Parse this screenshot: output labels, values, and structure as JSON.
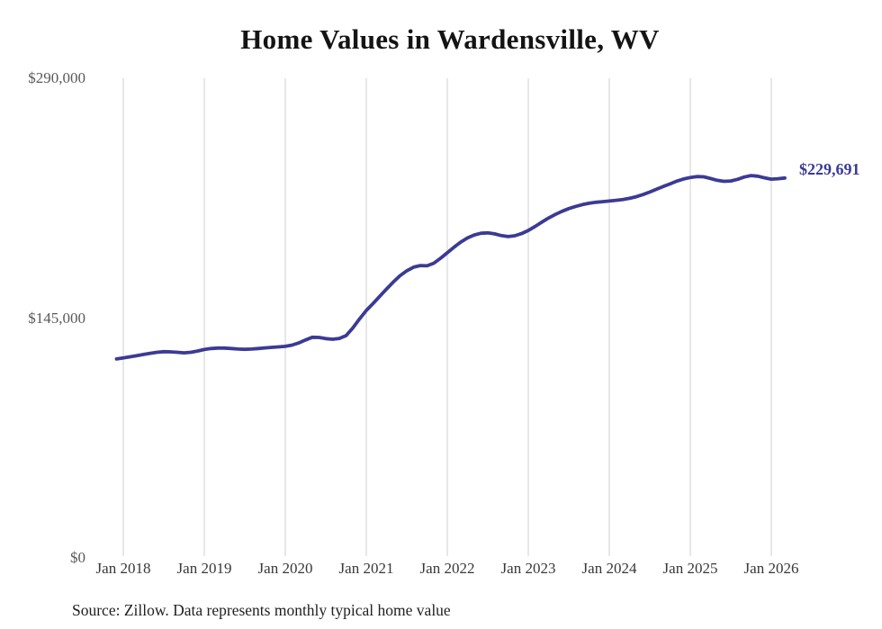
{
  "chart": {
    "title": "Home Values in Wardensville, WV",
    "latest_value_label": "$229,691",
    "source_note": "Source: Zillow. Data represents monthly typical home value",
    "colors": {
      "line": "#3b3a94",
      "latest_label": "#3b3a94",
      "grid": "#cfcfcf",
      "title": "#141414",
      "y_tick": "#595959",
      "x_tick": "#383838",
      "source": "#1f1f1f",
      "background": "#ffffff"
    }
  },
  "chart_data": {
    "type": "line",
    "title": "Home Values in Wardensville, WV",
    "xlabel": "",
    "ylabel": "",
    "ylim": [
      0,
      290000
    ],
    "grid": "vertical-only",
    "legend": "none",
    "y_ticks": [
      {
        "value": 0,
        "label": "$0"
      },
      {
        "value": 145000,
        "label": "$145,000"
      },
      {
        "value": 290000,
        "label": "$290,000"
      }
    ],
    "x_tick_labels": [
      "Jan 2018",
      "Jan 2019",
      "Jan 2020",
      "Jan 2021",
      "Jan 2022",
      "Jan 2023",
      "Jan 2024",
      "Jan 2025",
      "Jan 2026"
    ],
    "frequency": "monthly",
    "start_month": "2017-12",
    "end_month": "2026-03",
    "latest_value": 229691,
    "values": [
      120300,
      120900,
      121600,
      122300,
      123000,
      123700,
      124300,
      124700,
      124600,
      124300,
      124000,
      124300,
      125100,
      126000,
      126600,
      126900,
      126900,
      126600,
      126300,
      126100,
      126300,
      126600,
      127000,
      127300,
      127600,
      127900,
      128700,
      130000,
      131800,
      133400,
      133300,
      132600,
      132200,
      132700,
      134400,
      139000,
      144500,
      149600,
      153800,
      158200,
      162600,
      166800,
      170600,
      173600,
      175800,
      176800,
      176600,
      178200,
      181200,
      184500,
      187900,
      191000,
      193500,
      195300,
      196300,
      196500,
      195900,
      194900,
      194300,
      194800,
      196100,
      198000,
      200400,
      203000,
      205500,
      207700,
      209600,
      211200,
      212500,
      213600,
      214400,
      215000,
      215400,
      215800,
      216200,
      216700,
      217400,
      218400,
      219700,
      221200,
      222900,
      224600,
      226100,
      227800,
      229100,
      230000,
      230600,
      230400,
      229400,
      228300,
      227700,
      227900,
      228900,
      230300,
      231200,
      230800,
      229800,
      229000,
      229300,
      229691
    ]
  }
}
